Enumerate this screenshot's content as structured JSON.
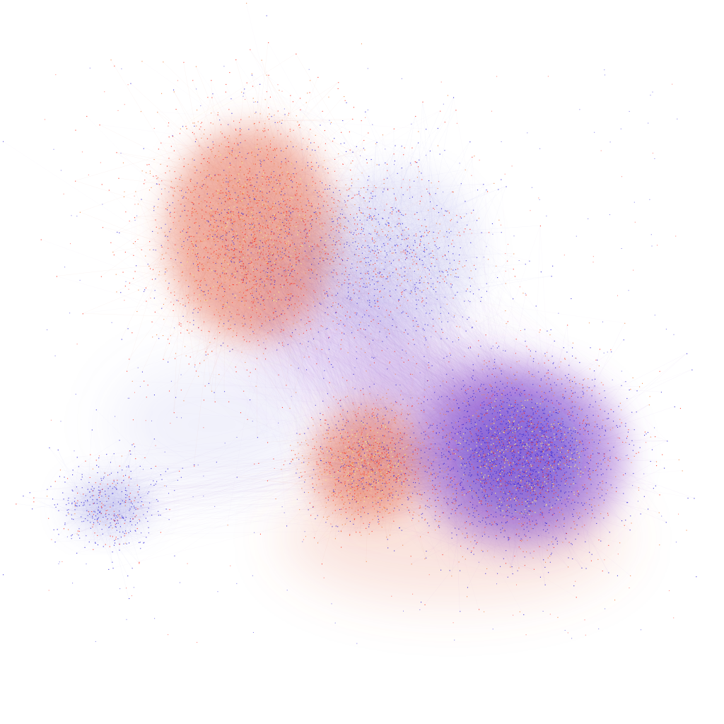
{
  "graph": {
    "background": "#ffffff",
    "node_colors": {
      "blue": "#2a1fd6",
      "red": "#ff2a1a",
      "orange": "#f2813c",
      "yellow": "#f4e98a"
    },
    "edge_colors": {
      "salmon": "#e8735a",
      "violet": "#9a5fd0",
      "lavender": "#8c8ce0"
    },
    "communities": [
      {
        "name": "",
        "dominant": "red"
      },
      {
        "name": "",
        "dominant": "red"
      },
      {
        "name": "",
        "dominant": "blue"
      },
      {
        "name": "",
        "dominant": "blue"
      },
      {
        "name": "",
        "dominant": "blue"
      }
    ]
  }
}
